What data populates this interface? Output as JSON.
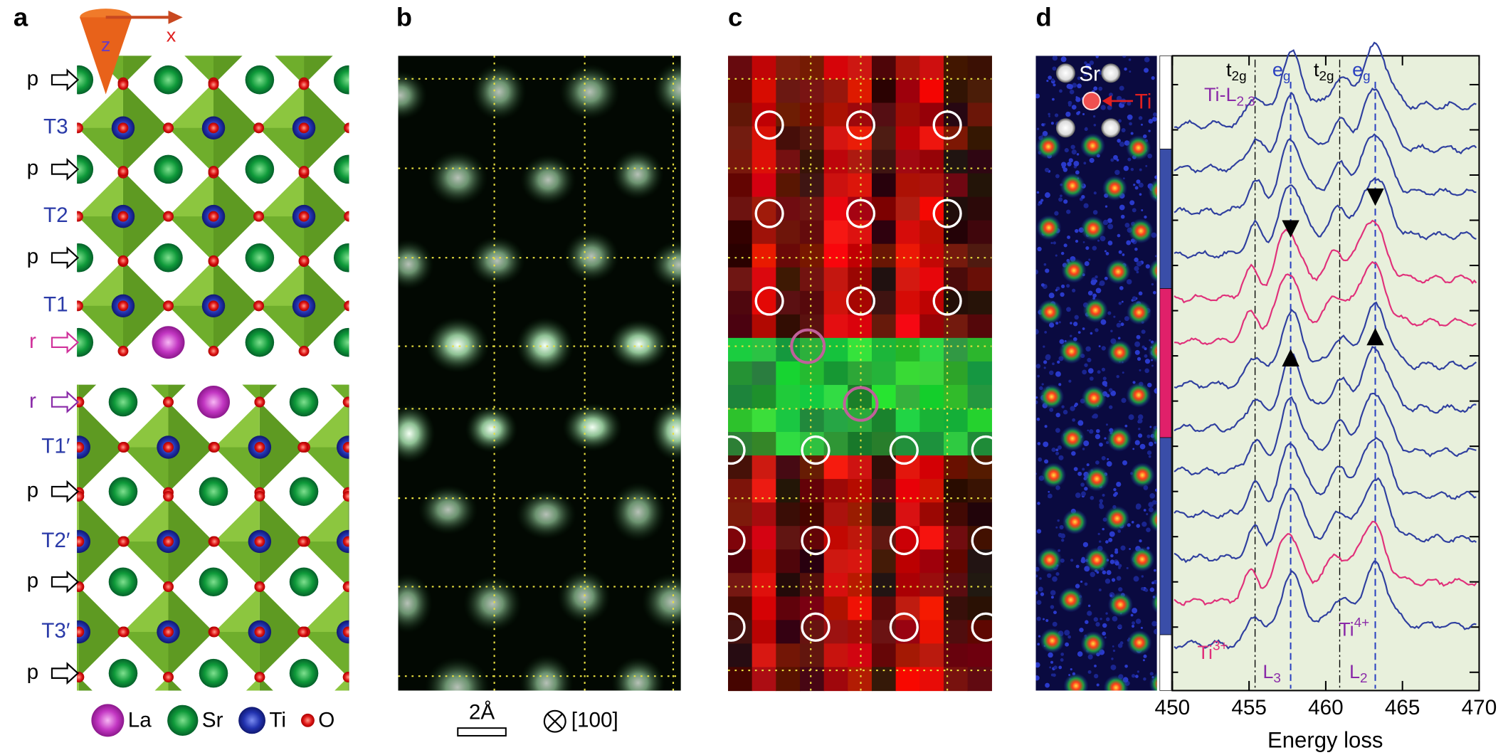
{
  "panel_labels": [
    "a",
    "b",
    "c",
    "d"
  ],
  "panel_a": {
    "axes": [
      "z",
      "x"
    ],
    "layer_labels": [
      "p",
      "T3",
      "p",
      "T2",
      "p",
      "T1",
      "r",
      "r",
      "T1′",
      "p",
      "T2′",
      "p",
      "T3′",
      "p"
    ],
    "legend": [
      "La",
      "Sr",
      "Ti",
      "O"
    ]
  },
  "panel_b": {
    "scale_bar": "2Å",
    "direction": "[100]"
  },
  "panel_d": {
    "image_labels": [
      "Sr",
      "Ti"
    ]
  },
  "chart_data": {
    "type": "line",
    "xlim": [
      450,
      470
    ],
    "xticks": [
      450,
      455,
      460,
      465,
      470
    ],
    "xlabel": "Energy loss",
    "annotations": [
      {
        "text": "t",
        "sub": "2g"
      },
      {
        "text": "e",
        "sub": "g"
      },
      {
        "text": "t",
        "sub": "2g"
      },
      {
        "text": "e",
        "sub": "g"
      },
      {
        "text": "Ti-L",
        "sub": "2,3"
      },
      {
        "text": "Ti",
        "sup": "3+"
      },
      {
        "text": "Ti",
        "sup": "4+"
      },
      {
        "text": "L",
        "sub": "3"
      },
      {
        "text": "L",
        "sub": "2"
      }
    ]
  }
}
